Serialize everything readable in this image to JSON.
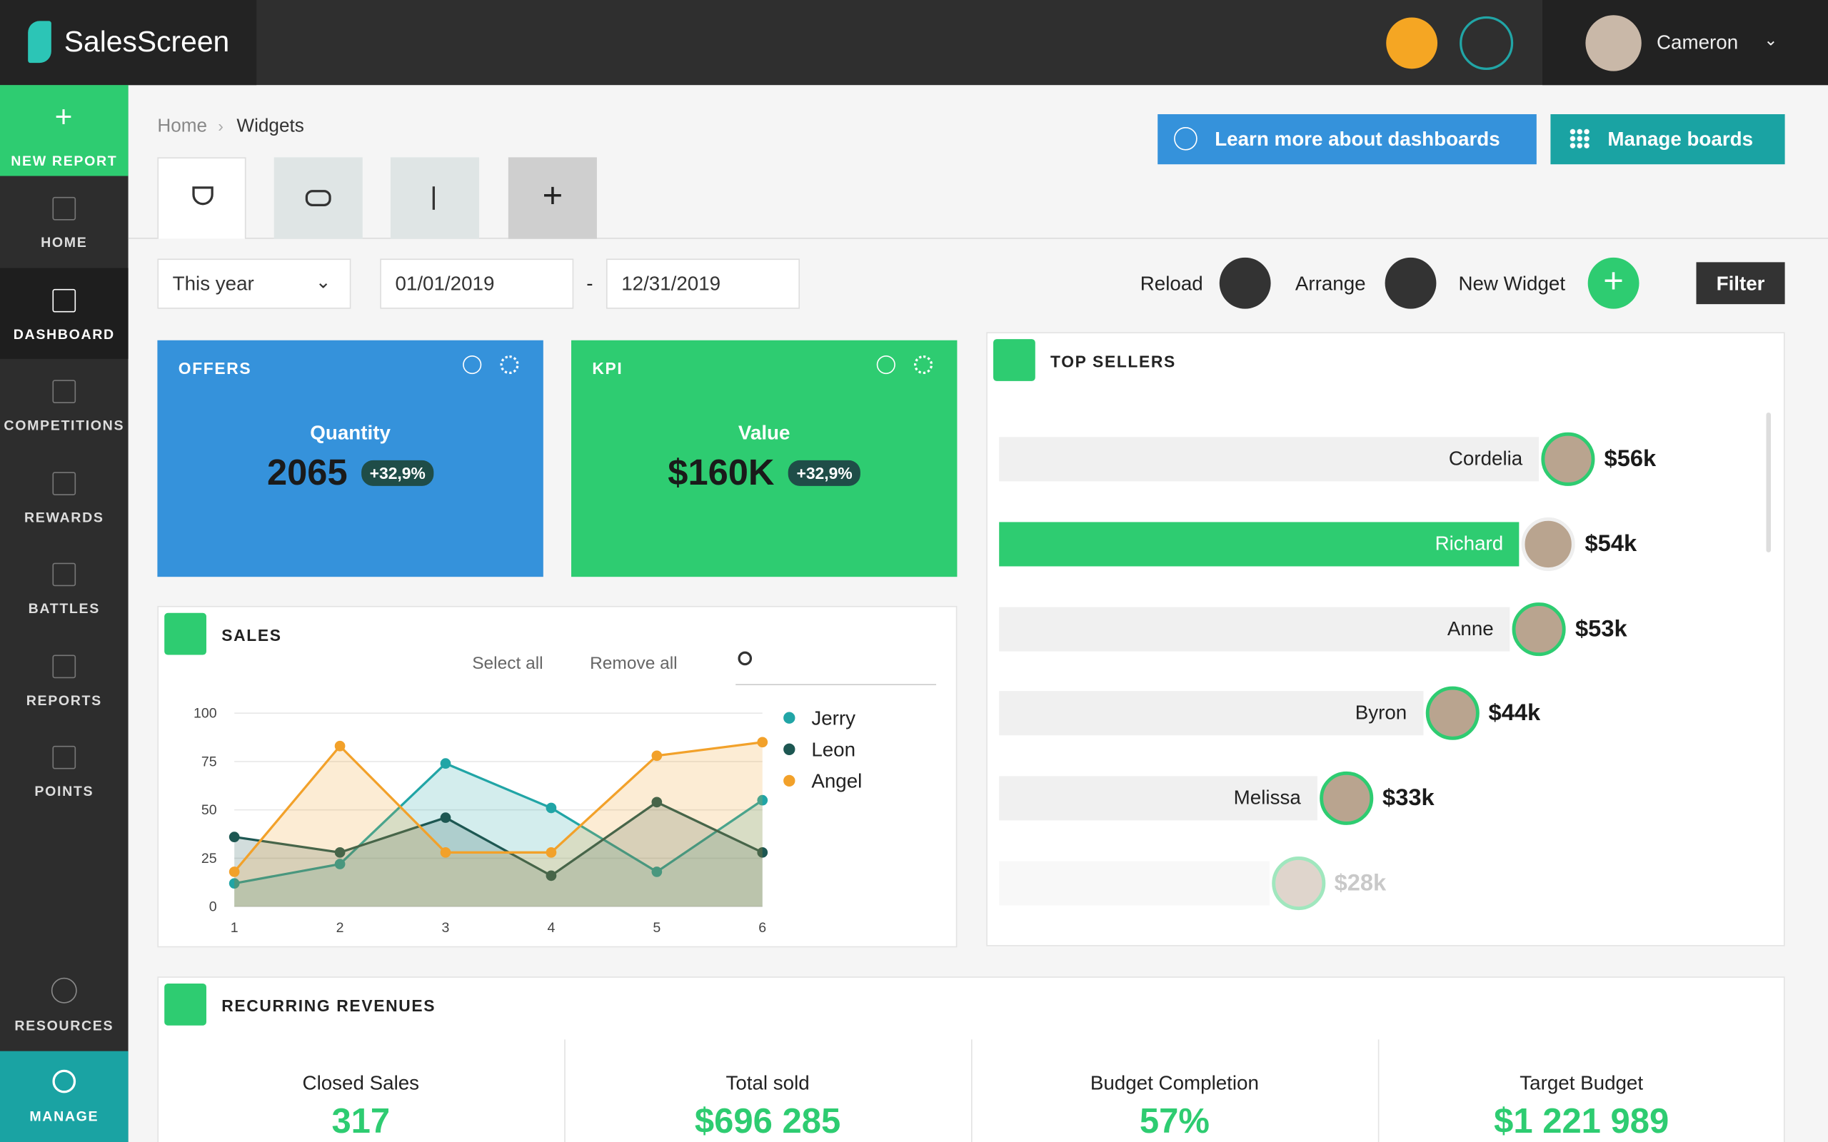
{
  "header": {
    "brand": "SalesScreen",
    "user": "Cameron"
  },
  "sidebar": {
    "new_report": "NEW REPORT",
    "items": [
      "HOME",
      "DASHBOARD",
      "COMPETITIONS",
      "REWARDS",
      "BATTLES",
      "REPORTS",
      "POINTS"
    ],
    "active_index": 1,
    "resources": "RESOURCES",
    "manage": "MANAGE"
  },
  "breadcrumb": [
    "Home",
    "Widgets"
  ],
  "buttons": {
    "learn": "Learn more about dashboards",
    "manage": "Manage boards"
  },
  "toolbar": {
    "period": "This year",
    "start": "01/01/2019",
    "separator": "-",
    "end": "12/31/2019",
    "reload": "Reload",
    "arrange": "Arrange",
    "new_widget": "New Widget",
    "filter": "Filter"
  },
  "kpis": [
    {
      "title": "OFFERS",
      "label": "Quantity",
      "value": "2065",
      "change": "+32,9%",
      "color": "#3592db"
    },
    {
      "title": "KPI",
      "label": "Value",
      "value": "$160K",
      "change": "+32,9%",
      "color": "#2ecc71"
    }
  ],
  "sales": {
    "title": "SALES",
    "select_all": "Select all",
    "remove_all": "Remove all",
    "chart": {
      "type": "line",
      "x": [
        1,
        2,
        3,
        4,
        5,
        6
      ],
      "xlim": [
        1,
        6
      ],
      "xticks": [
        1,
        2,
        3,
        4,
        5,
        6
      ],
      "ylim": [
        0,
        100
      ],
      "yticks": [
        0,
        25,
        50,
        75,
        100
      ],
      "grid": true,
      "series": [
        {
          "name": "Jerry",
          "color": "#21a5a6",
          "values": [
            12,
            22,
            74,
            51,
            18,
            55
          ]
        },
        {
          "name": "Leon",
          "color": "#1d5752",
          "values": [
            36,
            28,
            46,
            16,
            54,
            28
          ]
        },
        {
          "name": "Angel",
          "color": "#f2a12a",
          "values": [
            18,
            83,
            28,
            28,
            78,
            85
          ]
        }
      ]
    }
  },
  "top_sellers": {
    "title": "TOP SELLERS",
    "highlight_index": 1,
    "items": [
      {
        "name": "Cordelia",
        "value": 56000,
        "label": "$56k"
      },
      {
        "name": "Richard",
        "value": 54000,
        "label": "$54k"
      },
      {
        "name": "Anne",
        "value": 53000,
        "label": "$53k"
      },
      {
        "name": "Byron",
        "value": 44000,
        "label": "$44k"
      },
      {
        "name": "Melissa",
        "value": 33000,
        "label": "$33k"
      },
      {
        "name": null,
        "value": 28000,
        "label": "$28k"
      }
    ]
  },
  "recurring": {
    "title": "RECURRING REVENUES",
    "stats": [
      {
        "label": "Closed Sales",
        "value": "317"
      },
      {
        "label": "Total sold",
        "value": "$696 285"
      },
      {
        "label": "Budget Completion",
        "value": "57%"
      },
      {
        "label": "Target Budget",
        "value": "$1 221 989"
      }
    ]
  }
}
